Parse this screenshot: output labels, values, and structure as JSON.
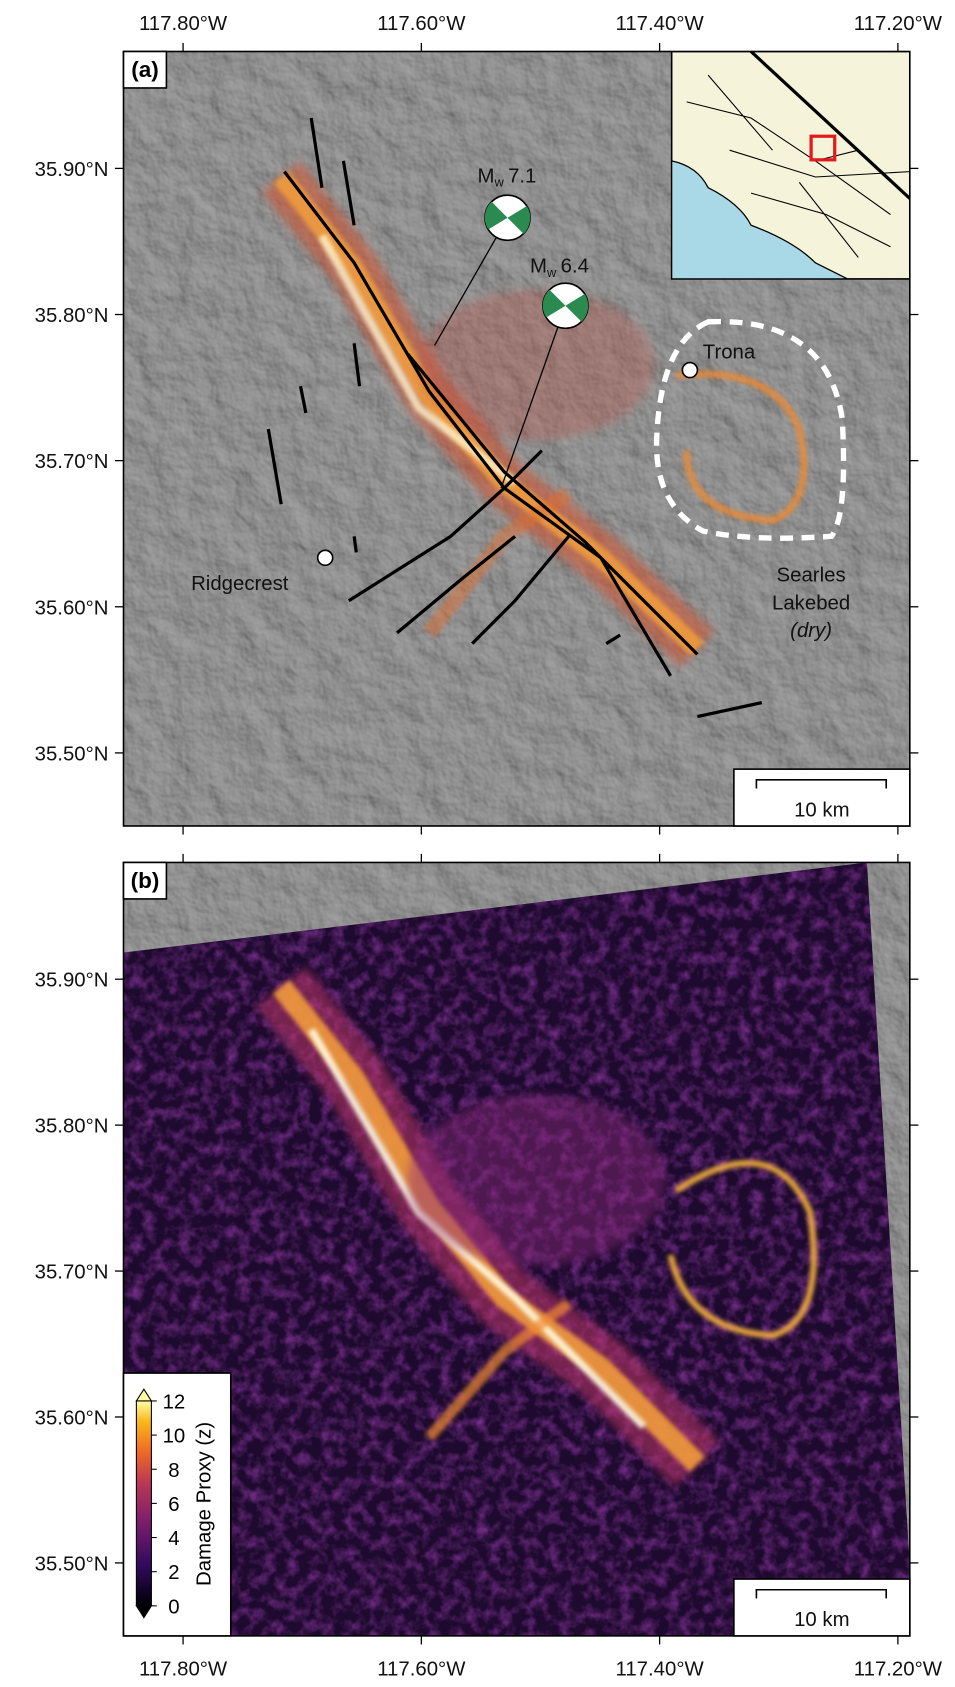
{
  "axes": {
    "xlim": [
      -117.85,
      -117.19
    ],
    "ylim": [
      35.45,
      35.98
    ],
    "xticks": [
      {
        "value": -117.8,
        "label": "117.80°W"
      },
      {
        "value": -117.6,
        "label": "117.60°W"
      },
      {
        "value": -117.4,
        "label": "117.40°W"
      },
      {
        "value": -117.2,
        "label": "117.20°W"
      }
    ],
    "yticks": [
      {
        "value": 35.5,
        "label": "35.50°N"
      },
      {
        "value": 35.6,
        "label": "35.60°N"
      },
      {
        "value": 35.7,
        "label": "35.70°N"
      },
      {
        "value": 35.8,
        "label": "35.80°N"
      },
      {
        "value": 35.9,
        "label": "35.90°N"
      }
    ]
  },
  "panels": [
    {
      "label": "(a)",
      "scale_bar": "10 km"
    },
    {
      "label": "(b)",
      "scale_bar": "10 km"
    }
  ],
  "events": [
    {
      "symbol": "M",
      "subscript": "w",
      "magnitude": "7.1"
    },
    {
      "symbol": "M",
      "subscript": "w",
      "magnitude": "6.4"
    }
  ],
  "places": {
    "trona": "Trona",
    "ridgecrest": "Ridgecrest",
    "lakebed": [
      "Searles",
      "Lakebed",
      "(dry)"
    ]
  },
  "colorbar": {
    "title": "Damage Proxy (z)",
    "range": [
      0,
      12
    ],
    "ticks": [
      0,
      2,
      4,
      6,
      8,
      10,
      12
    ]
  }
}
